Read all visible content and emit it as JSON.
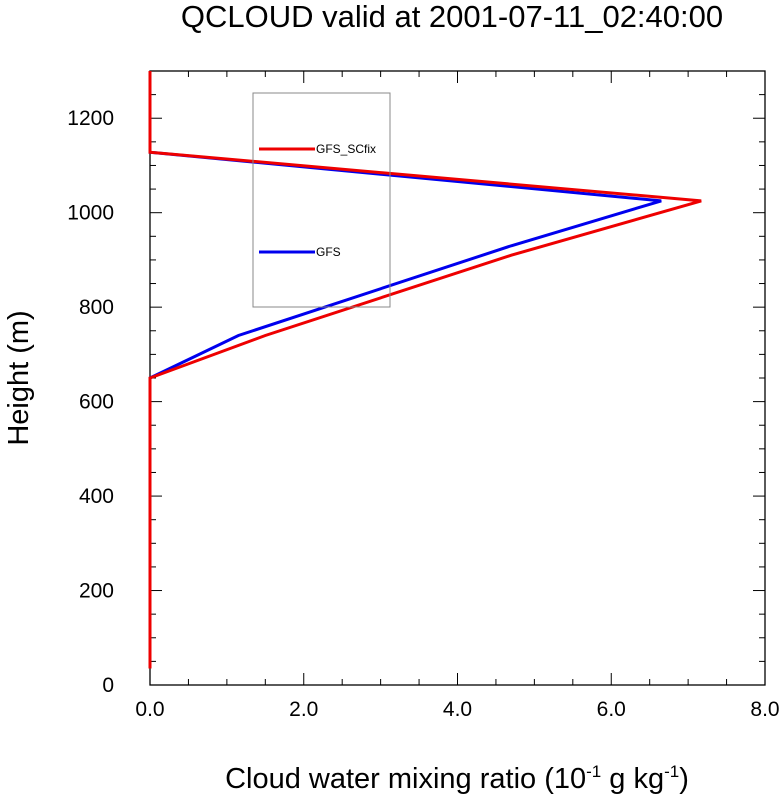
{
  "chart_data": {
    "type": "line",
    "title": "QCLOUD valid at 2001-07-11_02:40:00",
    "xlabel": "Cloud water mixing ratio (10",
    "xlabel_unit_parts": [
      "-1",
      " g kg",
      "-1",
      ")"
    ],
    "ylabel": "Height (m)",
    "xlim": [
      0,
      8
    ],
    "ylim": [
      0,
      1300
    ],
    "x_ticks": [
      0,
      2,
      4,
      6,
      8
    ],
    "x_tick_labels": [
      "0.0",
      "2.0",
      "4.0",
      "6.0",
      "8.0"
    ],
    "y_ticks": [
      0,
      200,
      400,
      600,
      800,
      1000,
      1200
    ],
    "y_tick_labels": [
      "0",
      "200",
      "400",
      "600",
      "800",
      "1000",
      "1200"
    ],
    "legend_placement": "upper-left-inside",
    "series": [
      {
        "name": "GFS_SCfix",
        "color": "#ee0000",
        "points": [
          [
            0,
            35
          ],
          [
            0,
            650
          ],
          [
            1.5,
            740
          ],
          [
            4.7,
            910
          ],
          [
            7.17,
            1025
          ],
          [
            0,
            1128
          ],
          [
            0,
            1300
          ]
        ]
      },
      {
        "name": "GFS",
        "color": "#0000ee",
        "points": [
          [
            0,
            35
          ],
          [
            0,
            650
          ],
          [
            1.15,
            740
          ],
          [
            4.7,
            930
          ],
          [
            6.65,
            1025
          ],
          [
            0,
            1128
          ],
          [
            0,
            1300
          ]
        ]
      }
    ]
  }
}
